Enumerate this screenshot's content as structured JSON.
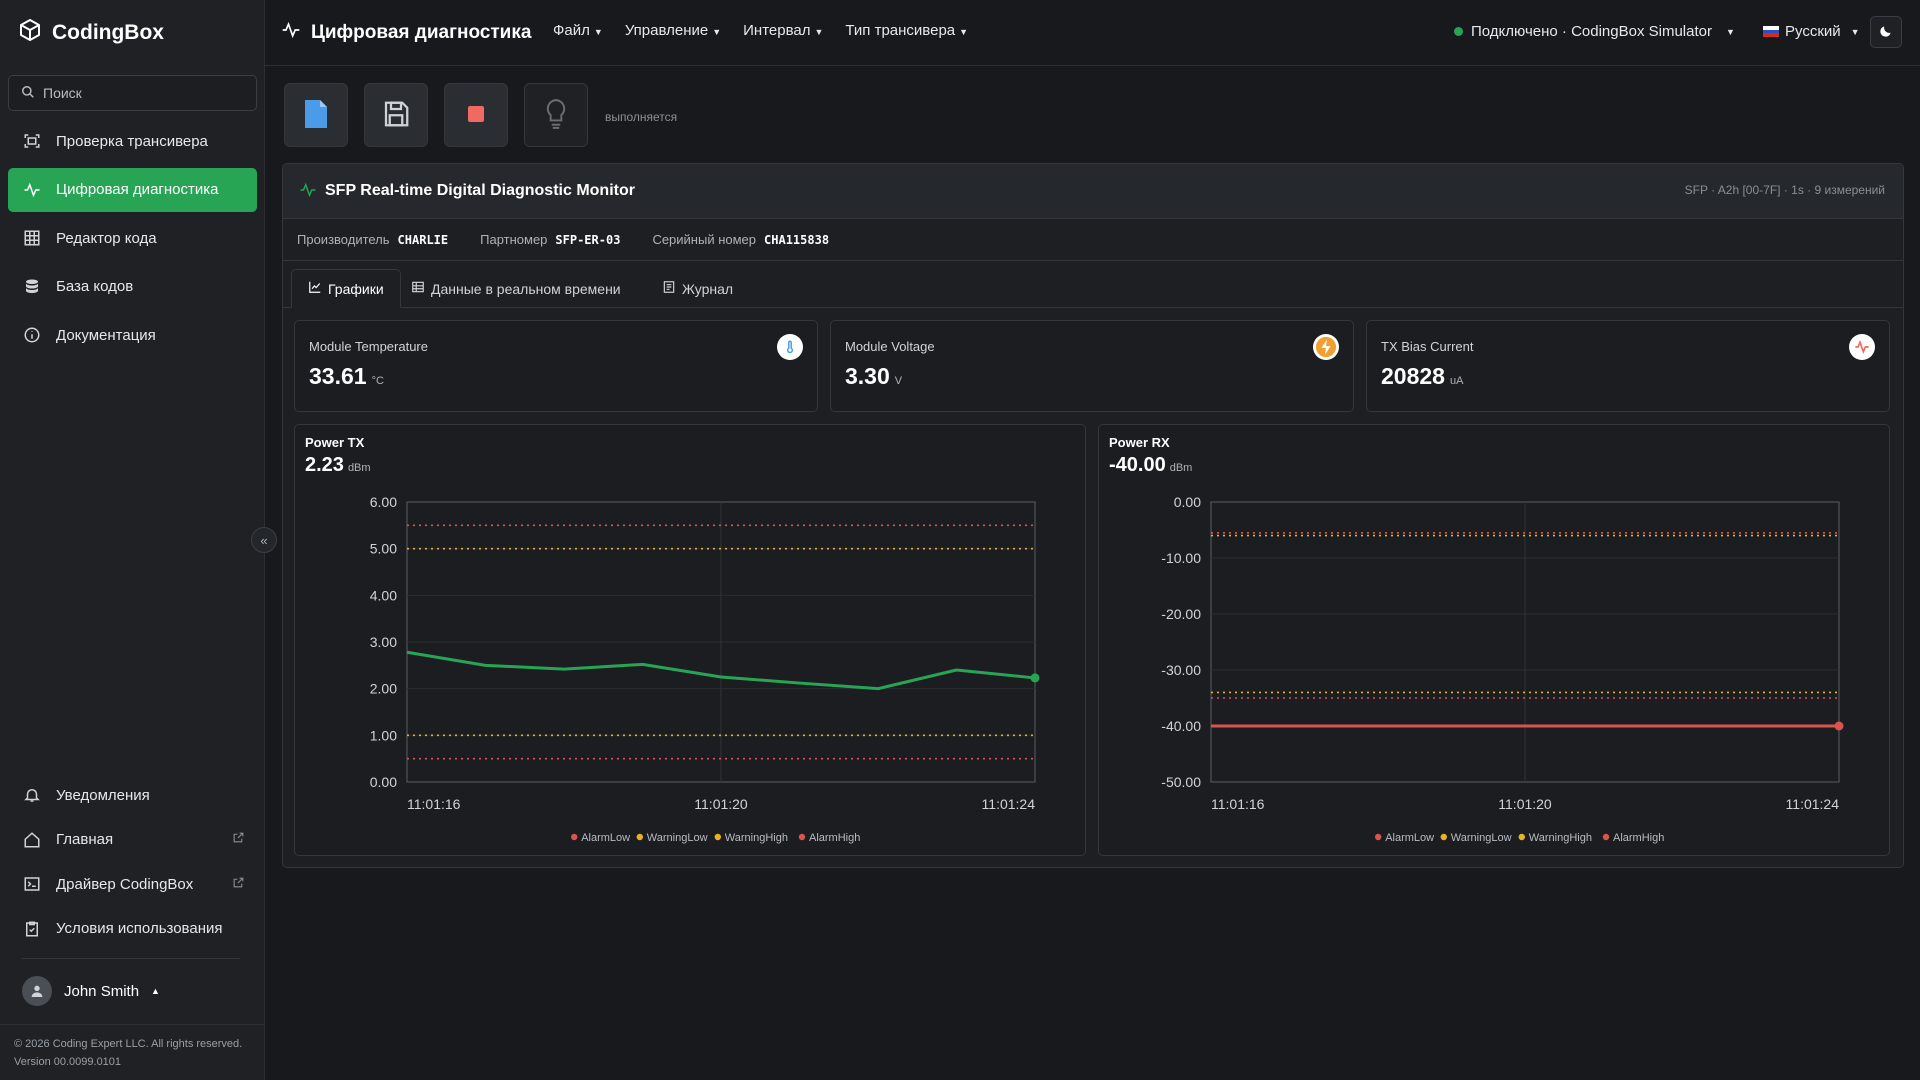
{
  "app": {
    "brand": "CodingBox"
  },
  "sidebar": {
    "search_placeholder": "Поиск",
    "top_items": [
      {
        "label": "Проверка трансивера",
        "icon": "scan-icon"
      },
      {
        "label": "Цифровая диагностика",
        "icon": "pulse-icon",
        "active": true
      },
      {
        "label": "Редактор кода",
        "icon": "grid-icon"
      },
      {
        "label": "База кодов",
        "icon": "database-icon"
      },
      {
        "label": "Документация",
        "icon": "info-icon"
      }
    ],
    "bottom_items": [
      {
        "label": "Уведомления",
        "icon": "bell-icon"
      },
      {
        "label": "Главная",
        "icon": "home-icon",
        "external": true
      },
      {
        "label": "Драйвер CodingBox",
        "icon": "terminal-icon",
        "external": true
      },
      {
        "label": "Условия использования",
        "icon": "clipboard-icon"
      }
    ],
    "user": "John Smith",
    "copyright": "© 2026 Coding Expert LLC. All rights reserved.",
    "version": "Version 00.0099.0101"
  },
  "topbar": {
    "title": "Цифровая диагностика",
    "menus": [
      "Файл",
      "Управление",
      "Интервал",
      "Тип трансивера"
    ],
    "connection": "Подключено · CodingBox Simulator",
    "language": "Русский"
  },
  "toolbar": {
    "status": "выполняется",
    "colors": {
      "file": "#4a9be8",
      "stop": "#ef6a5f",
      "save": "#cfd3d8"
    }
  },
  "monitor": {
    "title": "SFP Real-time Digital Diagnostic Monitor",
    "meta": "SFP · A2h [00-7F] · 1s · 9 измерений",
    "info": {
      "vendor_label": "Производитель",
      "vendor": "CHARLIE",
      "pn_label": "Партномер",
      "pn": "SFP-ER-03",
      "sn_label": "Серийный номер",
      "sn": "CHA115838"
    },
    "tabs": [
      "Графики",
      "Данные в реальном времени",
      "Журнал"
    ],
    "metrics": [
      {
        "label": "Module Temperature",
        "value": "33.61",
        "unit": "°C",
        "icon": "thermometer-icon",
        "color": "#4a9be8"
      },
      {
        "label": "Module Voltage",
        "value": "3.30",
        "unit": "V",
        "icon": "bolt-icon",
        "color": "#f0a030"
      },
      {
        "label": "TX Bias Current",
        "value": "20828",
        "unit": "uA",
        "icon": "pulse-icon",
        "color": "#ef6a5f"
      }
    ]
  },
  "chart_data": [
    {
      "type": "line",
      "title": "Power TX",
      "current": "2.23",
      "unit": "dBm",
      "x": [
        "11:01:16",
        "11:01:17",
        "11:01:18",
        "11:01:19",
        "11:01:20",
        "11:01:21",
        "11:01:22",
        "11:01:23",
        "11:01:24"
      ],
      "x_ticks": [
        "11:01:16",
        "11:01:20",
        "11:01:24"
      ],
      "series": [
        {
          "values": [
            2.78,
            2.5,
            2.42,
            2.52,
            2.25,
            2.12,
            2.0,
            2.4,
            2.23
          ],
          "color": "#27a555"
        }
      ],
      "thresholds": [
        {
          "name": "AlarmLow",
          "value": 0.5,
          "color": "#d9534f"
        },
        {
          "name": "WarningLow",
          "value": 1.0,
          "color": "#e6b422"
        },
        {
          "name": "WarningHigh",
          "value": 5.0,
          "color": "#e6b422"
        },
        {
          "name": "AlarmHigh",
          "value": 5.5,
          "color": "#d9534f"
        }
      ],
      "ylim": [
        0,
        6
      ],
      "y_ticks": [
        "0.00",
        "1.00",
        "2.00",
        "3.00",
        "4.00",
        "5.00",
        "6.00"
      ],
      "y_tick_values": [
        0,
        1,
        2,
        3,
        4,
        5,
        6
      ],
      "legend": "bottom"
    },
    {
      "type": "line",
      "title": "Power RX",
      "current": "-40.00",
      "unit": "dBm",
      "x": [
        "11:01:16",
        "11:01:17",
        "11:01:18",
        "11:01:19",
        "11:01:20",
        "11:01:21",
        "11:01:22",
        "11:01:23",
        "11:01:24"
      ],
      "x_ticks": [
        "11:01:16",
        "11:01:20",
        "11:01:24"
      ],
      "series": [
        {
          "values": [
            -40,
            -40,
            -40,
            -40,
            -40,
            -40,
            -40,
            -40,
            -40
          ],
          "color": "#d9534f"
        }
      ],
      "thresholds": [
        {
          "name": "AlarmLow",
          "value": -35,
          "color": "#d9534f"
        },
        {
          "name": "WarningLow",
          "value": -34,
          "color": "#e6b422"
        },
        {
          "name": "WarningHigh",
          "value": -6,
          "color": "#e6b422"
        },
        {
          "name": "AlarmHigh",
          "value": -5.5,
          "color": "#d9534f"
        }
      ],
      "ylim": [
        -50,
        0
      ],
      "y_ticks": [
        "-50.00",
        "-40.00",
        "-30.00",
        "-20.00",
        "-10.00",
        "0.00"
      ],
      "y_tick_values": [
        -50,
        -40,
        -30,
        -20,
        -10,
        0
      ],
      "legend": "bottom"
    }
  ]
}
